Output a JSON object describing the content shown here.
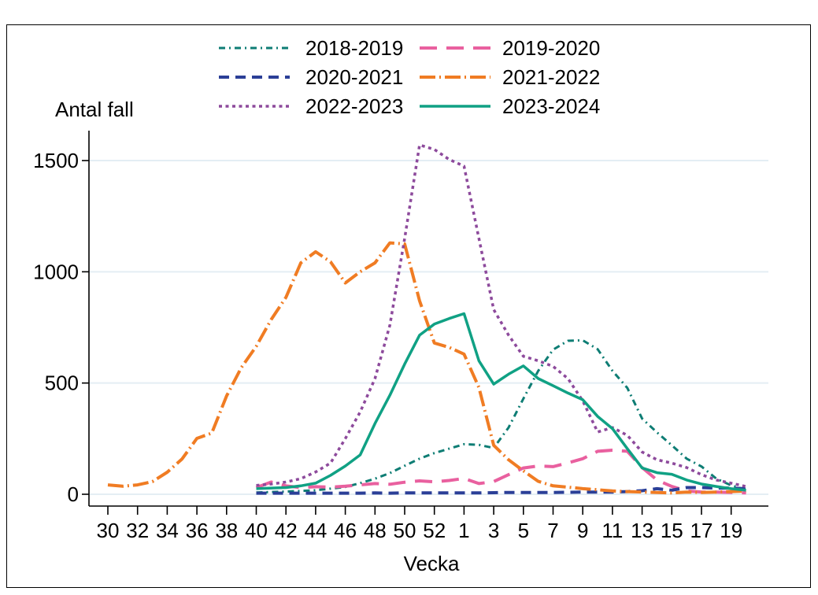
{
  "figure": {
    "background_color": "#ffffff",
    "border_color": "#000000",
    "text_color": "#000000",
    "gridline_color": "#e4eef4",
    "axis_color": "#000000"
  },
  "legend": {
    "position": "top",
    "columns": 2,
    "order": [
      "2018-2019",
      "2019-2020",
      "2020-2021",
      "2021-2022",
      "2022-2023",
      "2023-2024"
    ]
  },
  "chart_data": {
    "type": "line",
    "title": "",
    "xlabel": "Vecka",
    "ylabel": "Antal fall",
    "grid": "horizontal",
    "y_ticks": [
      0,
      500,
      1000,
      1500
    ],
    "ylim": [
      0,
      1650
    ],
    "x_categories": [
      "30",
      "31",
      "32",
      "33",
      "34",
      "35",
      "36",
      "37",
      "38",
      "39",
      "40",
      "41",
      "42",
      "43",
      "44",
      "45",
      "46",
      "47",
      "48",
      "49",
      "50",
      "51",
      "52",
      "53",
      "1",
      "2",
      "3",
      "4",
      "5",
      "6",
      "7",
      "8",
      "9",
      "10",
      "11",
      "12",
      "13",
      "14",
      "15",
      "16",
      "17",
      "18",
      "19",
      "20"
    ],
    "x_tick_labels": [
      "30",
      "32",
      "34",
      "36",
      "38",
      "40",
      "42",
      "44",
      "46",
      "48",
      "50",
      "52",
      "1",
      "3",
      "5",
      "7",
      "9",
      "11",
      "13",
      "15",
      "17",
      "19"
    ],
    "series": [
      {
        "name": "2018-2019",
        "color": "#0e7d74",
        "dash_style": "dash-dot-small",
        "dasharray": "8 5 2 5",
        "width": 3,
        "values": [
          null,
          null,
          null,
          null,
          null,
          null,
          null,
          null,
          null,
          null,
          8,
          10,
          12,
          15,
          18,
          25,
          33,
          50,
          70,
          95,
          128,
          160,
          185,
          205,
          225,
          222,
          208,
          300,
          430,
          555,
          650,
          690,
          692,
          652,
          555,
          478,
          340,
          278,
          220,
          160,
          125,
          70,
          40,
          20
        ]
      },
      {
        "name": "2019-2020",
        "color": "#e9609f",
        "dash_style": "long-dash",
        "dasharray": "22 12",
        "width": 4,
        "values": [
          null,
          null,
          null,
          null,
          null,
          null,
          null,
          null,
          null,
          null,
          30,
          55,
          38,
          30,
          34,
          32,
          36,
          42,
          48,
          45,
          54,
          60,
          56,
          62,
          71,
          48,
          57,
          88,
          118,
          127,
          124,
          141,
          160,
          193,
          198,
          193,
          120,
          64,
          35,
          15,
          10,
          10,
          8,
          6
        ]
      },
      {
        "name": "2020-2021",
        "color": "#2b3f97",
        "dash_style": "dash",
        "dasharray": "13 8",
        "width": 4,
        "values": [
          null,
          null,
          null,
          null,
          null,
          null,
          null,
          null,
          null,
          null,
          5,
          5,
          5,
          5,
          5,
          5,
          5,
          5,
          6,
          5,
          6,
          6,
          6,
          6,
          6,
          6,
          7,
          8,
          8,
          8,
          8,
          9,
          10,
          10,
          10,
          12,
          16,
          25,
          18,
          30,
          30,
          28,
          28,
          24
        ]
      },
      {
        "name": "2021-2022",
        "color": "#f07c23",
        "dash_style": "long-dash-dot",
        "dasharray": "20 5 2 5",
        "width": 4,
        "values": [
          42,
          36,
          42,
          57,
          99,
          159,
          251,
          275,
          442,
          570,
          665,
          785,
          885,
          1040,
          1090,
          1045,
          950,
          1000,
          1040,
          1130,
          1125,
          870,
          680,
          660,
          630,
          480,
          220,
          155,
          105,
          58,
          38,
          32,
          25,
          20,
          15,
          12,
          10,
          8,
          6,
          10,
          8,
          10,
          12,
          14
        ]
      },
      {
        "name": "2022-2023",
        "color": "#8d4a9c",
        "dash_style": "dotted",
        "dasharray": "4 4.5",
        "width": 3.5,
        "values": [
          null,
          null,
          null,
          null,
          null,
          null,
          null,
          null,
          null,
          null,
          40,
          46,
          55,
          70,
          100,
          140,
          250,
          370,
          520,
          760,
          1150,
          1570,
          1550,
          1505,
          1475,
          1150,
          830,
          715,
          620,
          600,
          575,
          520,
          420,
          280,
          300,
          265,
          190,
          155,
          140,
          120,
          88,
          64,
          50,
          35
        ]
      },
      {
        "name": "2023-2024",
        "color": "#10a184",
        "dash_style": "solid",
        "dasharray": "",
        "width": 3.5,
        "values": [
          null,
          null,
          null,
          null,
          null,
          null,
          null,
          null,
          null,
          null,
          25,
          28,
          30,
          38,
          50,
          85,
          127,
          177,
          318,
          445,
          585,
          715,
          765,
          790,
          812,
          600,
          495,
          540,
          577,
          520,
          488,
          455,
          425,
          350,
          295,
          205,
          118,
          97,
          90,
          64,
          46,
          35,
          25,
          18
        ]
      }
    ]
  }
}
